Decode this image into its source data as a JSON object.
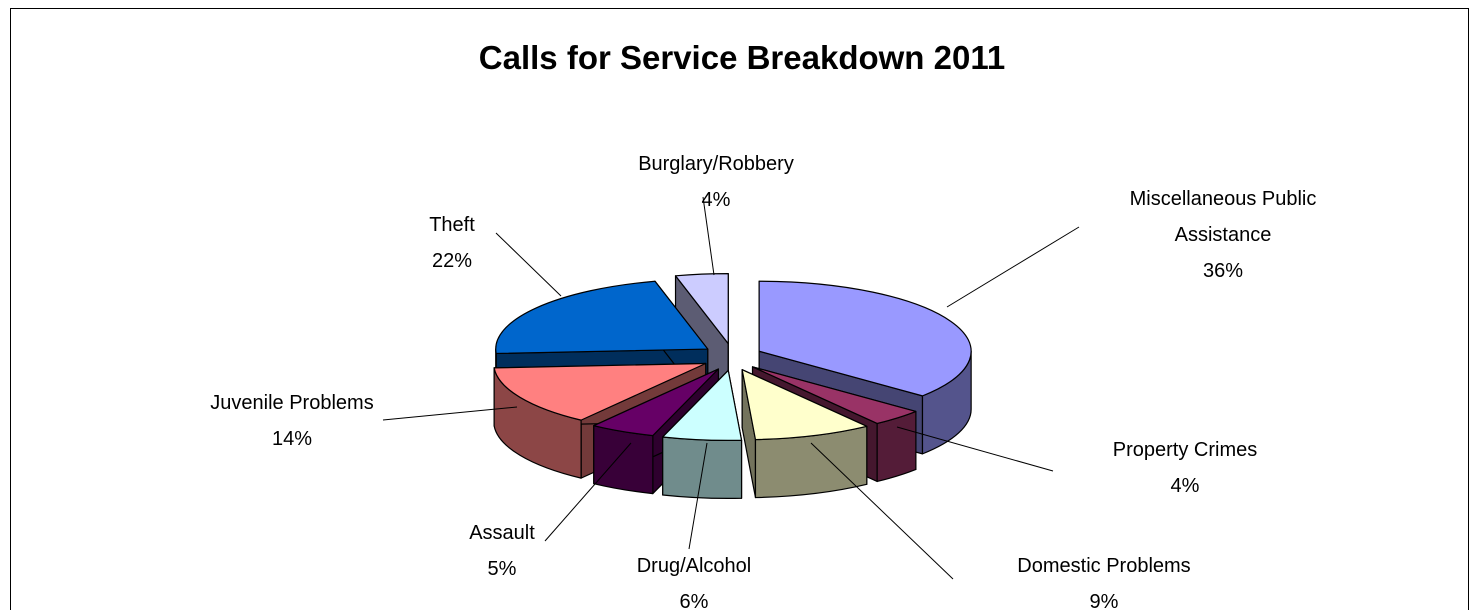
{
  "chart_data": {
    "type": "pie",
    "style": "3d-exploded",
    "title": "Calls for Service Breakdown 2011",
    "slices": [
      {
        "name": "Miscellaneous Public Assistance",
        "label_lines": [
          "Miscellaneous Public",
          "Assistance"
        ],
        "value": 36,
        "value_label": "36%",
        "color": "#9999ff"
      },
      {
        "name": "Property Crimes",
        "label_lines": [
          "Property Crimes"
        ],
        "value": 4,
        "value_label": "4%",
        "color": "#993366"
      },
      {
        "name": "Domestic Problems",
        "label_lines": [
          "Domestic Problems"
        ],
        "value": 9,
        "value_label": "9%",
        "color": "#ffffcc"
      },
      {
        "name": "Drug/Alcohol",
        "label_lines": [
          "Drug/Alcohol"
        ],
        "value": 6,
        "value_label": "6%",
        "color": "#ccffff"
      },
      {
        "name": "Assault",
        "label_lines": [
          "Assault"
        ],
        "value": 5,
        "value_label": "5%",
        "color": "#660066"
      },
      {
        "name": "Juvenile Problems",
        "label_lines": [
          "Juvenile Problems"
        ],
        "value": 14,
        "value_label": "14%",
        "color": "#ff8080"
      },
      {
        "name": "Theft",
        "label_lines": [
          "Theft"
        ],
        "value": 22,
        "value_label": "22%",
        "color": "#0066cc"
      },
      {
        "name": "Burglary/Robbery",
        "label_lines": [
          "Burglary/Robbery"
        ],
        "value": 4,
        "value_label": "4%",
        "color": "#ccccff"
      }
    ],
    "legend": "none",
    "data_labels": "category and percentage"
  }
}
